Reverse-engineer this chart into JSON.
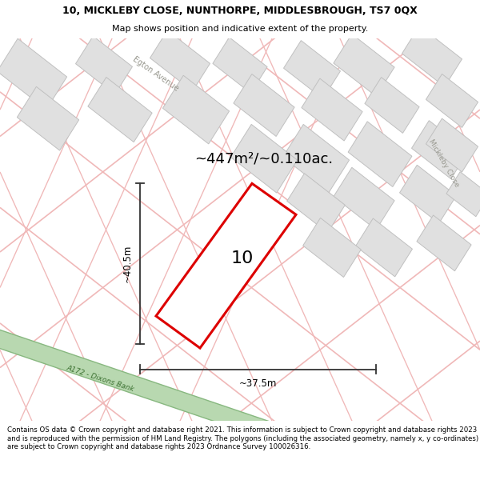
{
  "title_line1": "10, MICKLEBY CLOSE, NUNTHORPE, MIDDLESBROUGH, TS7 0QX",
  "title_line2": "Map shows position and indicative extent of the property.",
  "footer_text": "Contains OS data © Crown copyright and database right 2021. This information is subject to Crown copyright and database rights 2023 and is reproduced with the permission of HM Land Registry. The polygons (including the associated geometry, namely x, y co-ordinates) are subject to Crown copyright and database rights 2023 Ordnance Survey 100026316.",
  "area_label": "~447m²/~0.110ac.",
  "number_label": "10",
  "width_label": "~37.5m",
  "height_label": "~40.5m",
  "road_label": "A172 - Dixons Bank",
  "street_label1": "Egton Avenue",
  "street_label2": "Mickleby Close",
  "map_bg": "#ffffff",
  "building_fill": "#e0e0e0",
  "building_stroke": "#c0c0c0",
  "green_fill": "#b8d8b0",
  "green_stroke": "#88b880",
  "plot_stroke": "#dd0000",
  "dim_line_color": "#333333",
  "pink_road": "#f0b8b8",
  "road_text": "#888888"
}
